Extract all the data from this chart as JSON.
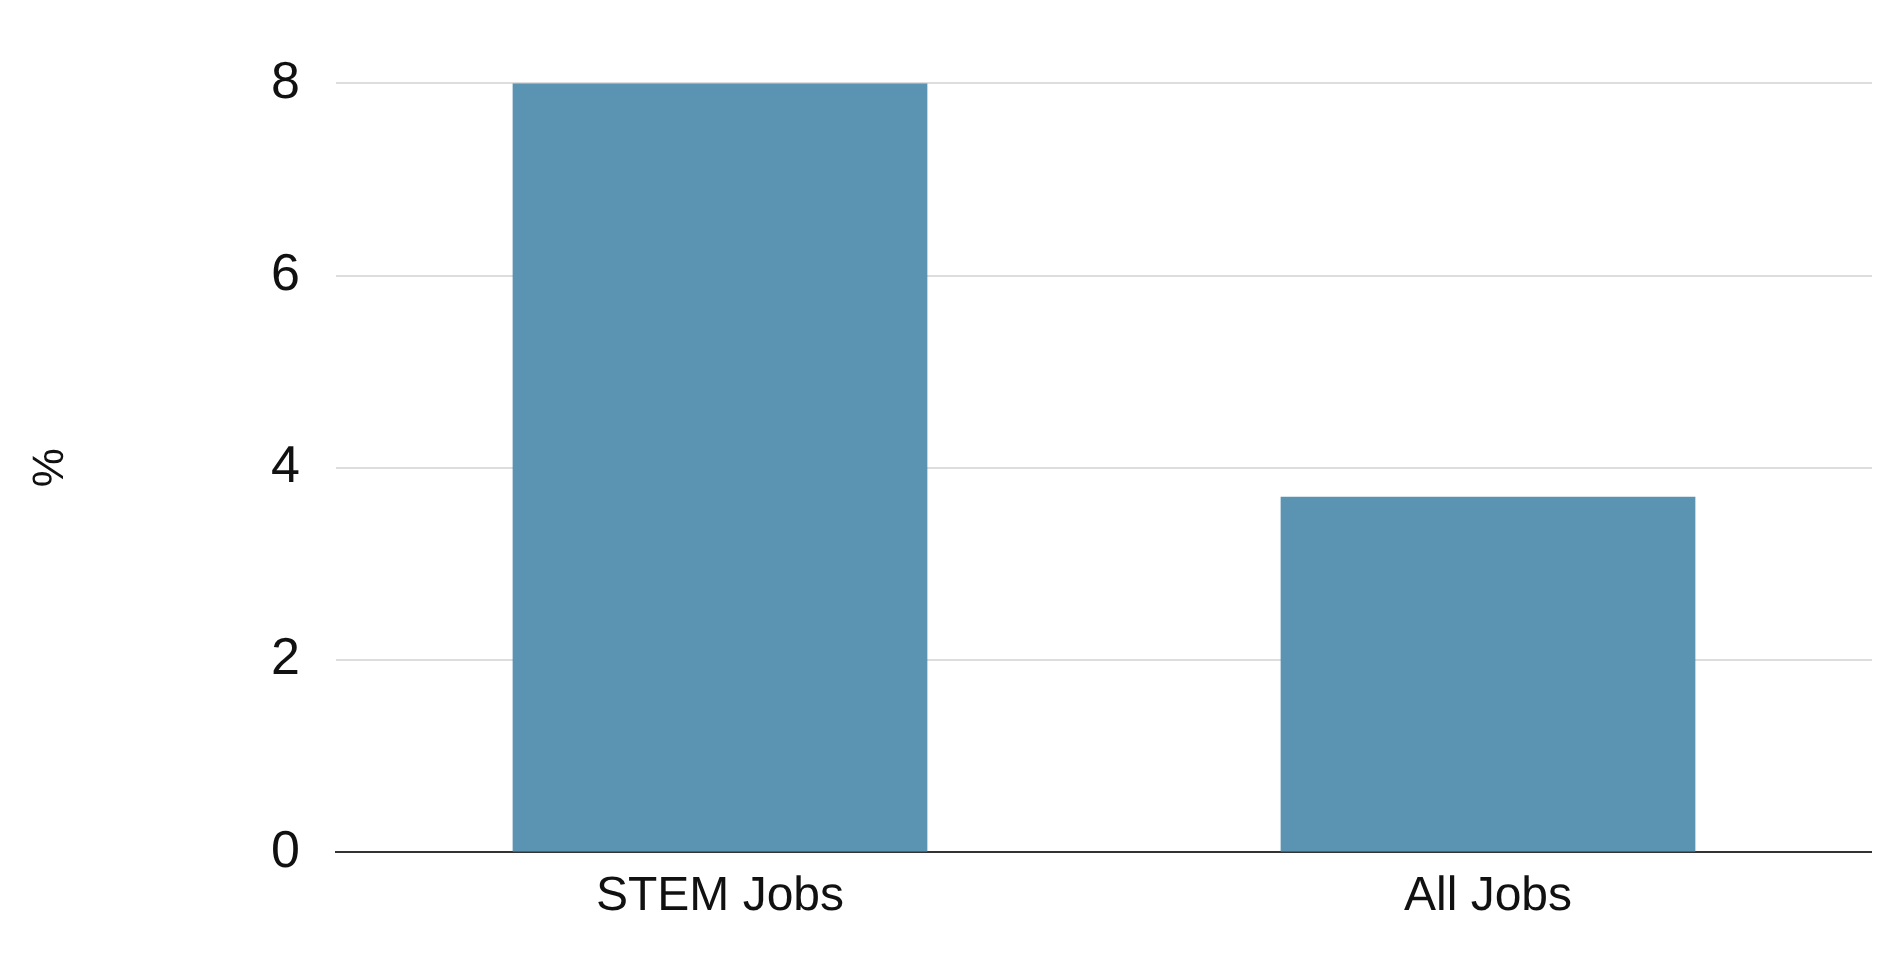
{
  "chart_data": {
    "type": "bar",
    "ylabel": "%",
    "categories": [
      "STEM Jobs",
      "All Jobs"
    ],
    "values": [
      8.0,
      3.7
    ],
    "color": "#5b93b3",
    "ylim": [
      0,
      8
    ],
    "yticks": [
      0,
      2,
      4,
      6,
      8
    ],
    "grid": "y"
  }
}
